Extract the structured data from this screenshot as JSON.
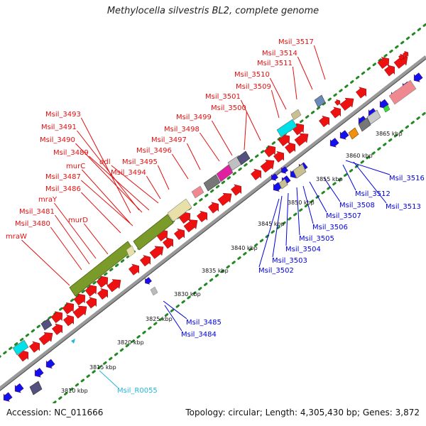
{
  "title": "Methylocella silvestris BL2, complete genome",
  "footer": {
    "accession": "Accession: NC_011666",
    "summary": "Topology: circular; Length: 4,305,430 bp; Genes: 3,872"
  },
  "colors": {
    "forward_gene": "#ee1111",
    "reverse_gene": "#1111ee",
    "label_forward": "#e01010",
    "label_reverse": "#0000e0",
    "label_rna": "#22b8d8",
    "tick_dots": "#228822",
    "backbone": "#999999"
  },
  "scale_labels": [
    "3810 kbp",
    "3815 kbp",
    "3820 kbp",
    "3825 kbp",
    "3830 kbp",
    "3835 kbp",
    "3840 kbp",
    "3845 kbp",
    "3850 kbp",
    "3855 kbp",
    "3860 kbp",
    "3865 kbp"
  ],
  "forward_labels": [
    "Msil_3517",
    "Msil_3514",
    "Msil_3511",
    "Msil_3510",
    "Msil_3509",
    "Msil_3501",
    "Msil_3500",
    "Msil_3493",
    "Msil_3499",
    "Msil_3491",
    "Msil_3498",
    "Msil_3490",
    "Msil_3497",
    "Msil_3489",
    "ddl",
    "Msil_3496",
    "murC",
    "Msil_3495",
    "Msil_3494",
    "Msil_3487",
    "Msil_3486",
    "mraY",
    "Msil_3481",
    "murD",
    "Msil_3480",
    "mraW"
  ],
  "reverse_labels": [
    "Msil_3516",
    "Msil_3512",
    "Msil_3513",
    "Msil_3508",
    "Msil_3507",
    "Msil_3506",
    "Msil_3505",
    "Msil_3504",
    "Msil_3503",
    "Msil_3502",
    "Msil_3485",
    "Msil_3484"
  ],
  "rna_labels": [
    "Msil_R0055"
  ]
}
